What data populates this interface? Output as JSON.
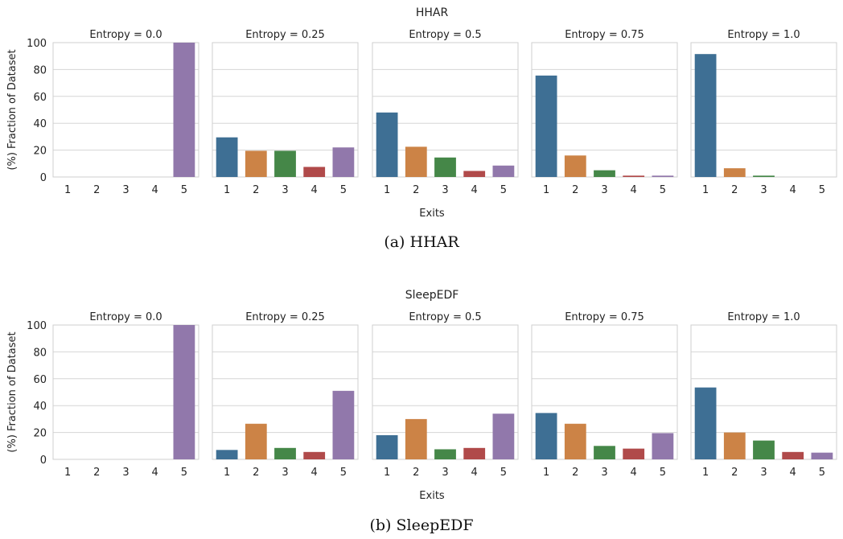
{
  "figures": [
    {
      "suptitle": "HHAR",
      "caption": "(a) HHAR",
      "ylabel": "(%) Fraction of Dataset",
      "xlabel": "Exits",
      "panels": [
        {
          "title": "Entropy = 0.0",
          "values": [
            0,
            0,
            0,
            0,
            100
          ]
        },
        {
          "title": "Entropy = 0.25",
          "values": [
            29.5,
            19.5,
            19.5,
            7.5,
            22
          ]
        },
        {
          "title": "Entropy = 0.5",
          "values": [
            48,
            22.5,
            14.5,
            4.5,
            8.5
          ]
        },
        {
          "title": "Entropy = 0.75",
          "values": [
            75.5,
            16,
            5,
            1,
            1
          ]
        },
        {
          "title": "Entropy = 1.0",
          "values": [
            91.5,
            6.5,
            1,
            0,
            0
          ]
        }
      ]
    },
    {
      "suptitle": "SleepEDF",
      "caption": "(b) SleepEDF",
      "ylabel": "(%) Fraction of Dataset",
      "xlabel": "Exits",
      "panels": [
        {
          "title": "Entropy = 0.0",
          "values": [
            0,
            0,
            0,
            0,
            100
          ]
        },
        {
          "title": "Entropy = 0.25",
          "values": [
            7,
            26.5,
            8.5,
            5.5,
            51
          ]
        },
        {
          "title": "Entropy = 0.5",
          "values": [
            18,
            30,
            7.5,
            8.5,
            34
          ]
        },
        {
          "title": "Entropy = 0.75",
          "values": [
            34.5,
            26.5,
            10,
            8,
            19.5
          ]
        },
        {
          "title": "Entropy = 1.0",
          "values": [
            53.5,
            20,
            14,
            5.5,
            5
          ]
        }
      ]
    }
  ],
  "chart_data": [
    {
      "type": "bar",
      "title": "HHAR",
      "xlabel": "Exits",
      "ylabel": "(%) Fraction of Dataset",
      "categories": [
        "1",
        "2",
        "3",
        "4",
        "5"
      ],
      "yticks": [
        "0",
        "20",
        "40",
        "60",
        "80",
        "100"
      ],
      "ylim": [
        0,
        100
      ],
      "grid": true,
      "colors": [
        "#3e6f94",
        "#cc8346",
        "#458748",
        "#b04a4a",
        "#9178ab"
      ],
      "series": [
        {
          "name": "Entropy = 0.0",
          "values": [
            0,
            0,
            0,
            0,
            100
          ]
        },
        {
          "name": "Entropy = 0.25",
          "values": [
            29.5,
            19.5,
            19.5,
            7.5,
            22
          ]
        },
        {
          "name": "Entropy = 0.5",
          "values": [
            48,
            22.5,
            14.5,
            4.5,
            8.5
          ]
        },
        {
          "name": "Entropy = 0.75",
          "values": [
            75.5,
            16,
            5,
            1,
            1
          ]
        },
        {
          "name": "Entropy = 1.0",
          "values": [
            91.5,
            6.5,
            1,
            0,
            0
          ]
        }
      ]
    },
    {
      "type": "bar",
      "title": "SleepEDF",
      "xlabel": "Exits",
      "ylabel": "(%) Fraction of Dataset",
      "categories": [
        "1",
        "2",
        "3",
        "4",
        "5"
      ],
      "yticks": [
        "0",
        "20",
        "40",
        "60",
        "80",
        "100"
      ],
      "ylim": [
        0,
        100
      ],
      "grid": true,
      "colors": [
        "#3e6f94",
        "#cc8346",
        "#458748",
        "#b04a4a",
        "#9178ab"
      ],
      "series": [
        {
          "name": "Entropy = 0.0",
          "values": [
            0,
            0,
            0,
            0,
            100
          ]
        },
        {
          "name": "Entropy = 0.25",
          "values": [
            7,
            26.5,
            8.5,
            5.5,
            51
          ]
        },
        {
          "name": "Entropy = 0.5",
          "values": [
            18,
            30,
            7.5,
            8.5,
            34
          ]
        },
        {
          "name": "Entropy = 0.75",
          "values": [
            34.5,
            26.5,
            10,
            8,
            19.5
          ]
        },
        {
          "name": "Entropy = 1.0",
          "values": [
            53.5,
            20,
            14,
            5.5,
            5
          ]
        }
      ]
    }
  ]
}
